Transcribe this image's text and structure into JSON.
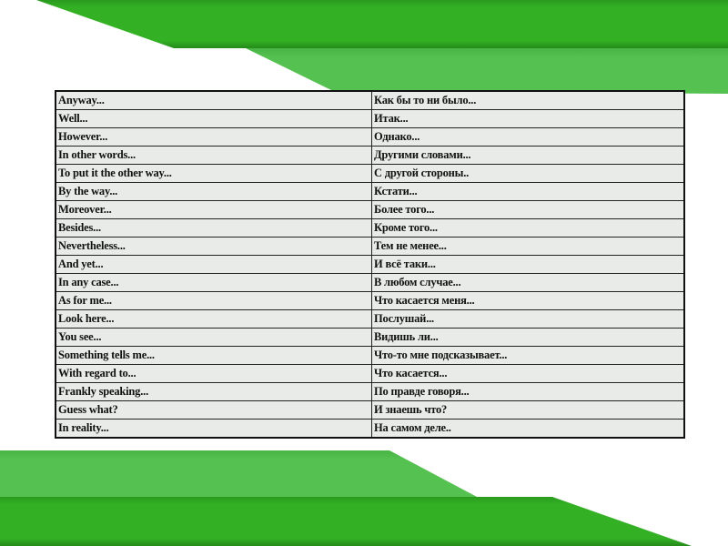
{
  "colors": {
    "dark_green": "#33b024",
    "light_green": "#55c150"
  },
  "phrases": [
    {
      "en": "Anyway...",
      "ru": "Как бы то ни было..."
    },
    {
      "en": "Well...",
      "ru": "Итак..."
    },
    {
      "en": "However...",
      "ru": "Однако..."
    },
    {
      "en": "In other words...",
      "ru": "Другими словами..."
    },
    {
      "en": "To put it the other way...",
      "ru": "С другой стороны.."
    },
    {
      "en": "By the way...",
      "ru": "Кстати..."
    },
    {
      "en": "Moreover...",
      "ru": "Более того..."
    },
    {
      "en": "Besides...",
      "ru": "Кроме того..."
    },
    {
      "en": "Nevertheless...",
      "ru": "Тем не менее..."
    },
    {
      "en": "And yet...",
      "ru": "И всё таки..."
    },
    {
      "en": "In any case...",
      "ru": "В любом случае..."
    },
    {
      "en": "As for me...",
      "ru": "Что касается меня..."
    },
    {
      "en": "Look here...",
      "ru": "Послушай..."
    },
    {
      "en": "You see...",
      "ru": "Видишь ли..."
    },
    {
      "en": "Something tells me...",
      "ru": "Что-то мне подсказывает..."
    },
    {
      "en": "With regard to...",
      "ru": "Что касается..."
    },
    {
      "en": "Frankly speaking...",
      "ru": "По правде говоря..."
    },
    {
      "en": "Guess what?",
      "ru": "И знаешь что?"
    },
    {
      "en": "In reality...",
      "ru": "На самом деле.."
    }
  ]
}
